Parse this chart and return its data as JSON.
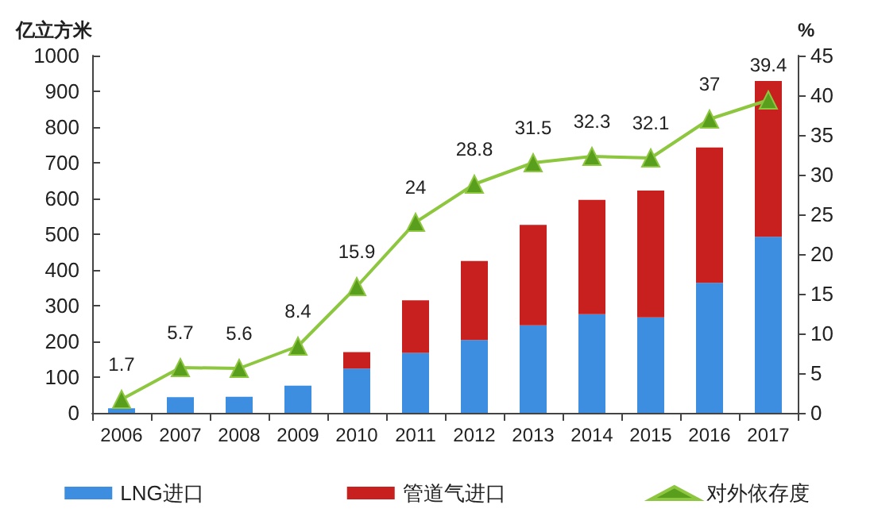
{
  "chart_data": {
    "type": "bar",
    "ylabel": "亿立方米",
    "y2label": "%",
    "categories": [
      "2006",
      "2007",
      "2008",
      "2009",
      "2010",
      "2011",
      "2012",
      "2013",
      "2014",
      "2015",
      "2016",
      "2017"
    ],
    "stacked": true,
    "series": [
      {
        "name": "LNG进口",
        "color": "#3d8ee0",
        "values": [
          13,
          44,
          45,
          76,
          124,
          168,
          204,
          245,
          276,
          267,
          364,
          493
        ]
      },
      {
        "name": "管道气进口",
        "color": "#c8201e",
        "values": [
          0,
          0,
          0,
          0,
          46,
          147,
          221,
          281,
          320,
          355,
          379,
          436
        ]
      },
      {
        "name": "对外依存度",
        "type": "line",
        "axis": "y2",
        "color": "#8dc63f",
        "marker": "triangle",
        "values": [
          1.7,
          5.7,
          5.6,
          8.4,
          15.9,
          24,
          28.8,
          31.5,
          32.3,
          32.1,
          37,
          39.4
        ],
        "value_labels": [
          "1.7",
          "5.7",
          "5.6",
          "8.4",
          "15.9",
          "24",
          "28.8",
          "31.5",
          "32.3",
          "32.1",
          "37",
          "39.4"
        ]
      }
    ],
    "ylim": [
      0,
      1000
    ],
    "yticks": [
      0,
      100,
      200,
      300,
      400,
      500,
      600,
      700,
      800,
      900,
      1000
    ],
    "y2lim": [
      0,
      45
    ],
    "y2ticks": [
      0,
      5,
      10,
      15,
      20,
      25,
      30,
      35,
      40,
      45
    ],
    "grid": false,
    "legend": "bottom"
  }
}
